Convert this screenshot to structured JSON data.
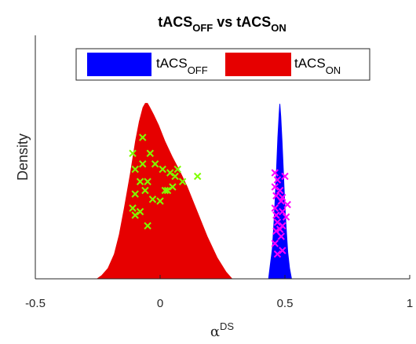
{
  "chart_data": {
    "type": "area",
    "title": {
      "main": "tACS",
      "sub": "OFF",
      "mid": " vs tACS",
      "sub2": "ON"
    },
    "xlabel": {
      "greek": "α",
      "sup": "DS"
    },
    "ylabel": "Density",
    "xlim": [
      -0.5,
      1
    ],
    "ylim": [
      0,
      1
    ],
    "x_ticks": [
      -0.5,
      0,
      0.5,
      1
    ],
    "x_tick_labels": [
      "-0.5",
      "0",
      "0.5",
      "1"
    ],
    "grid": false,
    "legend_position": "top",
    "colors": {
      "off": "#0000ff",
      "on": "#e60000",
      "on_points": "#7fff00",
      "off_points": "#ff00ff"
    },
    "series": [
      {
        "name": "tACS_OFF",
        "legend_main": "tACS",
        "legend_sub": "OFF",
        "color": "#0000ff",
        "density": {
          "x": [
            0.433,
            0.44,
            0.448,
            0.455,
            0.46,
            0.465,
            0.47,
            0.475,
            0.478,
            0.481,
            0.485,
            0.49,
            0.495,
            0.5,
            0.507,
            0.513,
            0.52,
            0.528
          ],
          "y": [
            0.0,
            0.08,
            0.17,
            0.33,
            0.47,
            0.63,
            0.8,
            0.93,
            0.99,
            0.99,
            0.92,
            0.78,
            0.62,
            0.45,
            0.28,
            0.15,
            0.06,
            0.0
          ]
        },
        "points": {
          "x": [
            0.46,
            0.46,
            0.465,
            0.46,
            0.47,
            0.465,
            0.46,
            0.47,
            0.465,
            0.47,
            0.48,
            0.485,
            0.49,
            0.49,
            0.485,
            0.49,
            0.5,
            0.51,
            0.505,
            0.48,
            0.49
          ],
          "y": [
            0.6,
            0.52,
            0.47,
            0.4,
            0.32,
            0.27,
            0.2,
            0.14,
            0.36,
            0.56,
            0.5,
            0.44,
            0.38,
            0.3,
            0.24,
            0.16,
            0.58,
            0.42,
            0.35,
            0.28,
            0.46
          ]
        }
      },
      {
        "name": "tACS_ON",
        "legend_main": "tACS",
        "legend_sub": "ON",
        "color": "#e60000",
        "density": {
          "x": [
            -0.255,
            -0.235,
            -0.21,
            -0.185,
            -0.165,
            -0.145,
            -0.12,
            -0.1,
            -0.085,
            -0.07,
            -0.06,
            -0.05,
            -0.04,
            -0.025,
            -0.005,
            0.02,
            0.05,
            0.08,
            0.11,
            0.15,
            0.19,
            0.23,
            0.265,
            0.29
          ],
          "y": [
            0.0,
            0.02,
            0.06,
            0.14,
            0.25,
            0.4,
            0.6,
            0.78,
            0.89,
            0.97,
            0.995,
            0.995,
            0.97,
            0.93,
            0.87,
            0.78,
            0.69,
            0.61,
            0.52,
            0.38,
            0.24,
            0.12,
            0.04,
            0.0
          ]
        },
        "points": {
          "x": [
            -0.07,
            -0.11,
            -0.04,
            -0.07,
            -0.1,
            -0.02,
            0.01,
            0.04,
            0.07,
            -0.08,
            -0.05,
            0.06,
            0.09,
            -0.1,
            -0.06,
            0.02,
            0.05,
            -0.03,
            0.0,
            -0.08,
            -0.11,
            0.03,
            0.15,
            -0.1,
            -0.05
          ],
          "y": [
            0.8,
            0.71,
            0.71,
            0.65,
            0.62,
            0.65,
            0.62,
            0.6,
            0.62,
            0.55,
            0.55,
            0.58,
            0.55,
            0.48,
            0.5,
            0.5,
            0.52,
            0.45,
            0.44,
            0.38,
            0.4,
            0.5,
            0.58,
            0.36,
            0.3
          ]
        }
      }
    ]
  }
}
